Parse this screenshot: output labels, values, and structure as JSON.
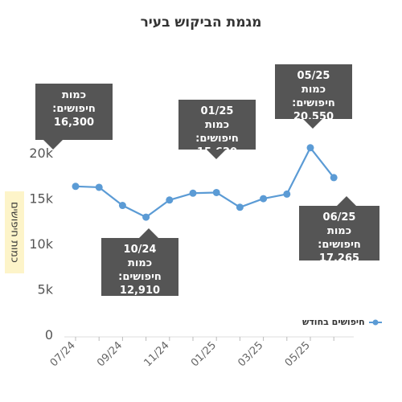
{
  "chart_data": {
    "type": "line",
    "title": "מגמת הביקוש בעיר",
    "ylabel": "כמות חיפושים",
    "xlabel": "",
    "ylim": [
      0,
      22000
    ],
    "yticks": [
      0,
      5000,
      10000,
      15000,
      20000
    ],
    "ytick_labels": [
      "0",
      "5k",
      "10k",
      "15k",
      "20k"
    ],
    "x": [
      "07/24",
      "08/24",
      "09/24",
      "10/24",
      "11/24",
      "12/24",
      "01/25",
      "02/25",
      "03/25",
      "04/25",
      "05/25",
      "06/25"
    ],
    "xtick_labels": [
      "07/24",
      "09/24",
      "11/24",
      "01/25",
      "03/25",
      "05/25"
    ],
    "series": [
      {
        "name": "חיפושים בחודש",
        "values": [
          16300,
          16200,
          14200,
          12910,
          14800,
          15550,
          15620,
          14000,
          14950,
          15450,
          20550,
          17265
        ],
        "color": "#5b9bd5"
      }
    ],
    "legend": "bottom-right",
    "grid": false,
    "annotations": [
      {
        "x": "07/24",
        "label": "כמות חיפושים:",
        "value": "16,300"
      },
      {
        "x": "10/24",
        "label": "כמות חיפושים:",
        "value": "12,910"
      },
      {
        "x": "01/25",
        "label": "כמות חיפושים:",
        "value": "15,620"
      },
      {
        "x": "05/25",
        "label": "כמות חיפושים:",
        "value": "20,550"
      },
      {
        "x": "06/25",
        "label": "כמות חיפושים:",
        "value": "17,265"
      }
    ]
  }
}
